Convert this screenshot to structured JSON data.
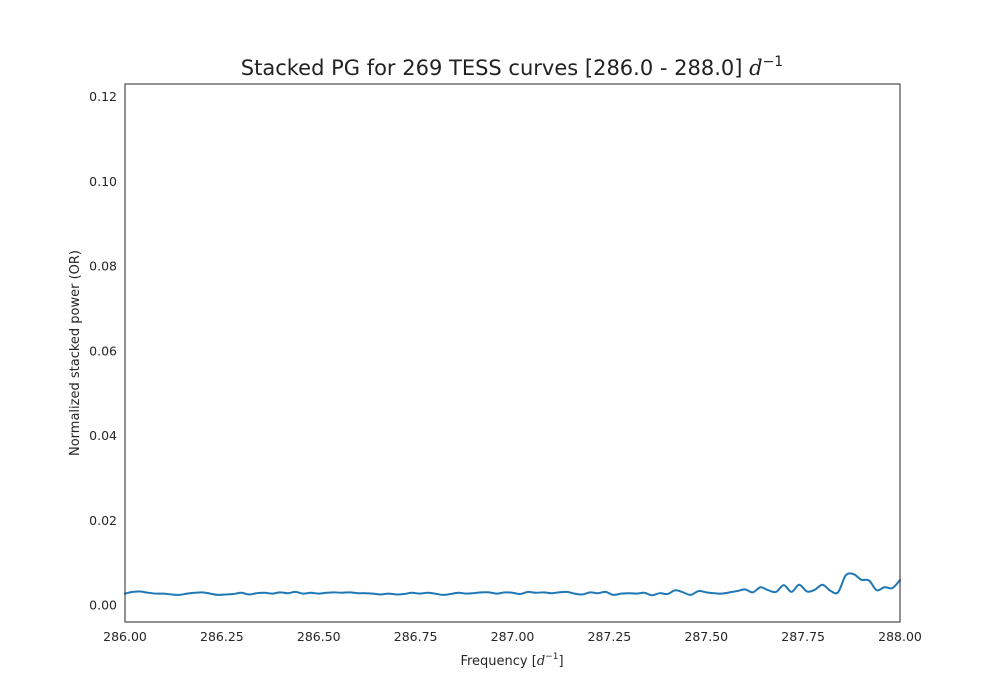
{
  "chart_data": {
    "type": "line",
    "title": "Stacked PG for 269 TESS curves [286.0 - 288.0] ",
    "title_math": "d",
    "title_sup": "−1",
    "xlabel": "Frequency [",
    "xlabel_math": "d",
    "xlabel_sup": "−1",
    "xlabel_close": "]",
    "ylabel": "Normalized stacked power (OR)",
    "xlim": [
      286.0,
      288.0
    ],
    "ylim": [
      -0.004,
      0.123
    ],
    "xticks": [
      "286.00",
      "286.25",
      "286.50",
      "286.75",
      "287.00",
      "287.25",
      "287.50",
      "287.75",
      "288.00"
    ],
    "yticks": [
      "0.00",
      "0.02",
      "0.04",
      "0.06",
      "0.08",
      "0.10",
      "0.12"
    ],
    "grid": false,
    "line_color": "#1f77b4",
    "series": [
      {
        "x": [
          286.0,
          286.02,
          286.04,
          286.06,
          286.08,
          286.1,
          286.12,
          286.14,
          286.16,
          286.18,
          286.2,
          286.22,
          286.24,
          286.26,
          286.28,
          286.3,
          286.32,
          286.34,
          286.36,
          286.38,
          286.4,
          286.42,
          286.44,
          286.46,
          286.48,
          286.5,
          286.52,
          286.54,
          286.56,
          286.58,
          286.6,
          286.62,
          286.64,
          286.66,
          286.68,
          286.7,
          286.72,
          286.74,
          286.76,
          286.78,
          286.8,
          286.82,
          286.84,
          286.86,
          286.88,
          286.9,
          286.92,
          286.94,
          286.96,
          286.98,
          287.0,
          287.02,
          287.04,
          287.06,
          287.08,
          287.1,
          287.12,
          287.14,
          287.16,
          287.18,
          287.2,
          287.22,
          287.24,
          287.26,
          287.28,
          287.3,
          287.32,
          287.34,
          287.36,
          287.38,
          287.4,
          287.42,
          287.44,
          287.46,
          287.48,
          287.5,
          287.52,
          287.54,
          287.56,
          287.58,
          287.6,
          287.62,
          287.64,
          287.66,
          287.68,
          287.7,
          287.72,
          287.74,
          287.76,
          287.78,
          287.8,
          287.82,
          287.84,
          287.86,
          287.88,
          287.9,
          287.92,
          287.94,
          287.96,
          287.98,
          288.0
        ],
        "y": [
          0.0027,
          0.0031,
          0.0032,
          0.0029,
          0.0027,
          0.0027,
          0.0025,
          0.0024,
          0.0027,
          0.0029,
          0.003,
          0.0027,
          0.0024,
          0.0025,
          0.0026,
          0.0029,
          0.0025,
          0.0028,
          0.0029,
          0.0027,
          0.003,
          0.0028,
          0.0031,
          0.0027,
          0.0029,
          0.0027,
          0.0029,
          0.003,
          0.0029,
          0.003,
          0.0028,
          0.0028,
          0.0027,
          0.0025,
          0.0027,
          0.0025,
          0.0026,
          0.0029,
          0.0027,
          0.0029,
          0.0027,
          0.0024,
          0.0026,
          0.0029,
          0.0027,
          0.0028,
          0.003,
          0.003,
          0.0027,
          0.003,
          0.0029,
          0.0026,
          0.0031,
          0.0029,
          0.003,
          0.0028,
          0.003,
          0.0031,
          0.0027,
          0.0025,
          0.003,
          0.0028,
          0.0031,
          0.0024,
          0.0027,
          0.0028,
          0.0027,
          0.0029,
          0.0023,
          0.0028,
          0.0026,
          0.0035,
          0.003,
          0.0024,
          0.0033,
          0.003,
          0.0028,
          0.0027,
          0.003,
          0.0033,
          0.0037,
          0.003,
          0.0042,
          0.0035,
          0.0031,
          0.0047,
          0.0031,
          0.0048,
          0.0032,
          0.0036,
          0.0048,
          0.0034,
          0.003,
          0.007,
          0.0073,
          0.006,
          0.0058,
          0.0035,
          0.0042,
          0.004,
          0.0059
        ]
      }
    ]
  }
}
